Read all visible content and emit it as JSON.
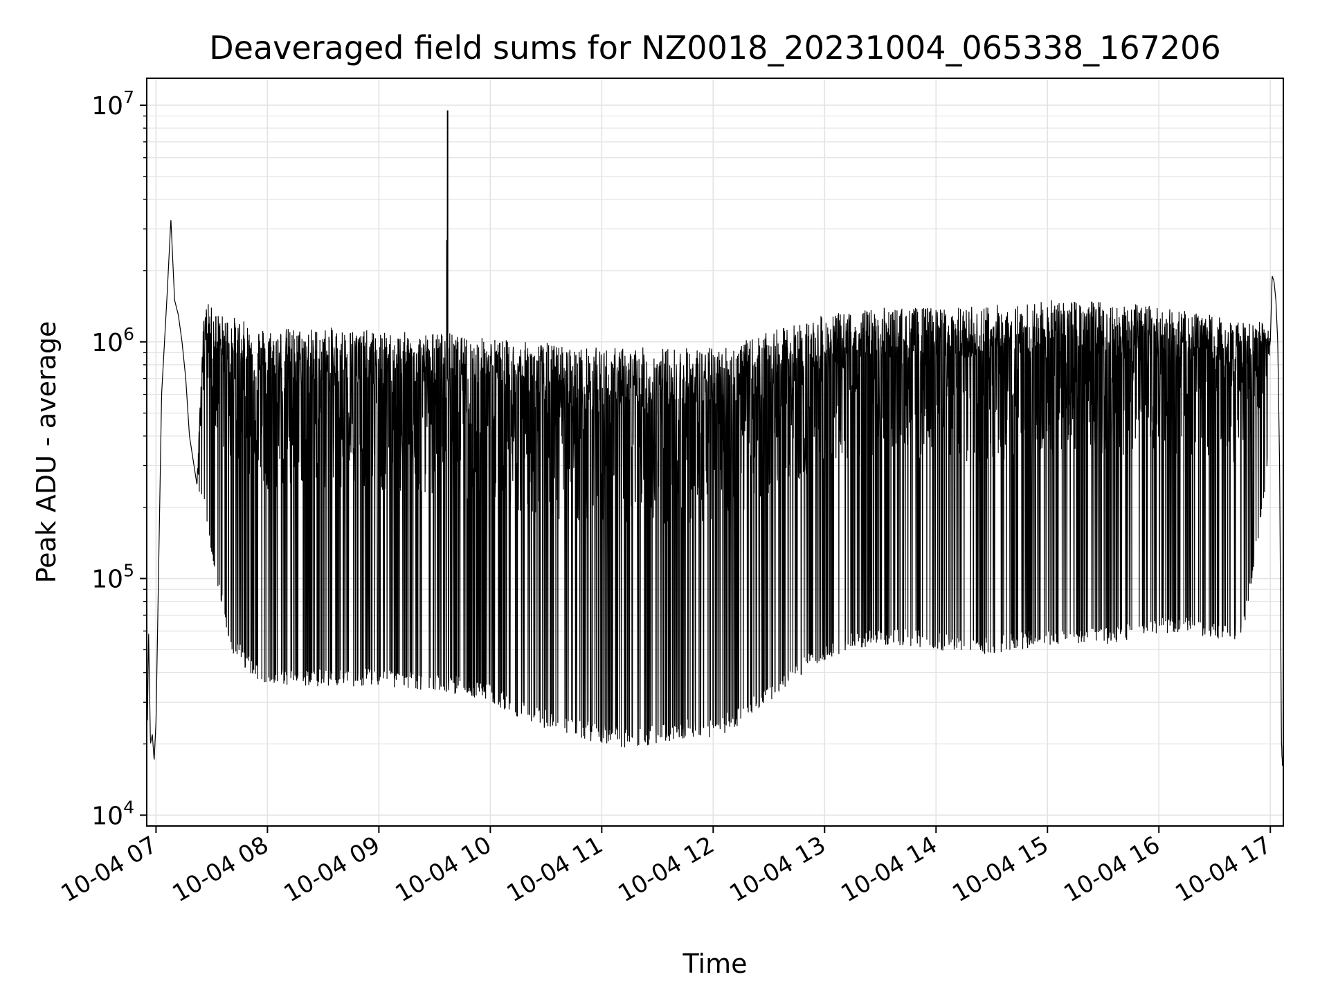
{
  "chart_data": {
    "type": "line",
    "title": "Deaveraged field sums for NZ0018_20231004_065338_167206",
    "xlabel": "Time",
    "ylabel": "Peak ADU - average",
    "yscale": "log",
    "ylim": [
      9000,
      13000000
    ],
    "xlim": [
      "2023-10-04T06:55",
      "2023-10-04T17:07"
    ],
    "grid": true,
    "line_color": "#000000",
    "x_tick_labels": [
      "10-04 07",
      "10-04 08",
      "10-04 09",
      "10-04 10",
      "10-04 11",
      "10-04 12",
      "10-04 13",
      "10-04 14",
      "10-04 15",
      "10-04 16",
      "10-04 17"
    ],
    "y_tick_labels": [
      {
        "value": 10000,
        "base": "10",
        "exp": "4"
      },
      {
        "value": 100000,
        "base": "10",
        "exp": "5"
      },
      {
        "value": 1000000,
        "base": "10",
        "exp": "6"
      },
      {
        "value": 10000000,
        "base": "10",
        "exp": "7"
      }
    ],
    "series": [
      {
        "x": [
          "2023-10-04T06:55",
          "2023-10-04T06:56",
          "2023-10-04T06:57",
          "2023-10-04T06:58",
          "2023-10-04T06:59",
          "2023-10-04T07:00",
          "2023-10-04T07:03",
          "2023-10-04T07:06",
          "2023-10-04T07:08",
          "2023-10-04T07:10",
          "2023-10-04T07:12",
          "2023-10-04T07:14",
          "2023-10-04T07:16",
          "2023-10-04T07:18",
          "2023-10-04T07:22",
          "2023-10-04T07:26",
          "2023-10-04T07:30",
          "2023-10-04T07:35",
          "2023-10-04T07:40",
          "2023-10-04T07:50",
          "2023-10-04T08:00",
          "2023-10-04T08:15",
          "2023-10-04T08:30",
          "2023-10-04T08:45",
          "2023-10-04T09:00",
          "2023-10-04T09:15",
          "2023-10-04T09:30",
          "2023-10-04T09:36",
          "2023-10-04T09:37",
          "2023-10-04T09:38",
          "2023-10-04T09:45",
          "2023-10-04T10:00",
          "2023-10-04T10:15",
          "2023-10-04T10:30",
          "2023-10-04T10:45",
          "2023-10-04T11:00",
          "2023-10-04T11:15",
          "2023-10-04T11:30",
          "2023-10-04T11:45",
          "2023-10-04T12:00",
          "2023-10-04T12:15",
          "2023-10-04T12:30",
          "2023-10-04T12:45",
          "2023-10-04T13:00",
          "2023-10-04T13:15",
          "2023-10-04T13:30",
          "2023-10-04T13:45",
          "2023-10-04T14:00",
          "2023-10-04T14:15",
          "2023-10-04T14:30",
          "2023-10-04T14:45",
          "2023-10-04T15:00",
          "2023-10-04T15:15",
          "2023-10-04T15:30",
          "2023-10-04T15:45",
          "2023-10-04T16:00",
          "2023-10-04T16:15",
          "2023-10-04T16:30",
          "2023-10-04T16:45",
          "2023-10-04T16:58",
          "2023-10-04T17:00",
          "2023-10-04T17:01",
          "2023-10-04T17:02",
          "2023-10-04T17:03",
          "2023-10-04T17:04",
          "2023-10-04T17:05",
          "2023-10-04T17:06",
          "2023-10-04T17:07"
        ],
        "upper": [
          15000,
          60000,
          20000,
          22000,
          17000,
          25000,
          600000,
          1600000,
          3300000,
          1500000,
          1300000,
          1000000,
          700000,
          400000,
          250000,
          1500000,
          1400000,
          1300000,
          1300000,
          1200000,
          1150000,
          1150000,
          1150000,
          1150000,
          1100000,
          1100000,
          1100000,
          1100000,
          9500000,
          1100000,
          1050000,
          1050000,
          1000000,
          1000000,
          950000,
          950000,
          950000,
          950000,
          950000,
          950000,
          1000000,
          1100000,
          1200000,
          1300000,
          1350000,
          1400000,
          1400000,
          1400000,
          1400000,
          1450000,
          1450000,
          1500000,
          1500000,
          1500000,
          1450000,
          1400000,
          1350000,
          1300000,
          1200000,
          1250000,
          1000000,
          1900000,
          1800000,
          1500000,
          1000000,
          300000,
          20000,
          18000
        ],
        "lower": [
          15000,
          60000,
          20000,
          22000,
          17000,
          25000,
          600000,
          1600000,
          3300000,
          1500000,
          1300000,
          1000000,
          700000,
          400000,
          250000,
          200000,
          120000,
          80000,
          50000,
          40000,
          35000,
          35000,
          35000,
          35000,
          35000,
          34000,
          33000,
          33000,
          33000,
          33000,
          32000,
          30000,
          26000,
          23000,
          21000,
          20000,
          19000,
          20000,
          21000,
          21000,
          24000,
          30000,
          38000,
          45000,
          50000,
          52000,
          52000,
          50000,
          48000,
          48000,
          50000,
          52000,
          52000,
          52000,
          55000,
          58000,
          60000,
          55000,
          55000,
          250000,
          1000000,
          1900000,
          1800000,
          1500000,
          1000000,
          300000,
          20000,
          13000
        ]
      }
    ]
  }
}
